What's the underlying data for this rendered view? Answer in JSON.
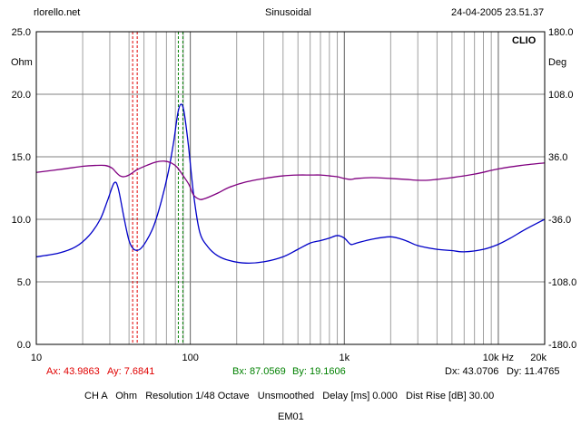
{
  "header": {
    "site": "rlorello.net",
    "mode": "Sinusoidal",
    "datetime": "24-04-2005 23.51.37"
  },
  "brand": "CLIO",
  "chart_data": {
    "type": "line",
    "xscale": "log",
    "xlim": [
      10,
      20000
    ],
    "ylim_left": [
      0,
      25
    ],
    "ylim_right": [
      -180,
      180
    ],
    "left_unit": "Ohm",
    "right_unit": "Deg",
    "left_ticks": [
      "25.0",
      "20.0",
      "15.0",
      "10.0",
      "5.0",
      "0.0"
    ],
    "left_tick_values": [
      25,
      20,
      15,
      10,
      5,
      0
    ],
    "right_ticks": [
      "180.0",
      "108.0",
      "36.0",
      "-36.0",
      "-108.0",
      "-180.0"
    ],
    "right_tick_values": [
      180,
      108,
      36,
      -36,
      -108,
      -180
    ],
    "x_ticks": [
      {
        "label": "10",
        "value": 10
      },
      {
        "label": "100",
        "value": 100
      },
      {
        "label": "1k",
        "value": 1000
      },
      {
        "label": "10k Hz",
        "value": 10000
      },
      {
        "label": "20k",
        "value": 20000
      }
    ],
    "grid": true,
    "series": [
      {
        "axis": "left",
        "color": "#0000c8",
        "points": [
          [
            10,
            7.0
          ],
          [
            14,
            7.3
          ],
          [
            18,
            7.8
          ],
          [
            22,
            8.7
          ],
          [
            26,
            10.0
          ],
          [
            29,
            11.5
          ],
          [
            32,
            12.9
          ],
          [
            34,
            12.5
          ],
          [
            37,
            10.2
          ],
          [
            40,
            8.3
          ],
          [
            43,
            7.6
          ],
          [
            47,
            7.6
          ],
          [
            52,
            8.3
          ],
          [
            58,
            9.5
          ],
          [
            65,
            11.5
          ],
          [
            72,
            13.8
          ],
          [
            78,
            16.2
          ],
          [
            83,
            18.5
          ],
          [
            87,
            19.2
          ],
          [
            91,
            18.6
          ],
          [
            97,
            16.0
          ],
          [
            105,
            12.0
          ],
          [
            115,
            9.0
          ],
          [
            130,
            7.8
          ],
          [
            150,
            7.1
          ],
          [
            180,
            6.7
          ],
          [
            230,
            6.5
          ],
          [
            300,
            6.6
          ],
          [
            400,
            7.0
          ],
          [
            500,
            7.6
          ],
          [
            600,
            8.1
          ],
          [
            700,
            8.3
          ],
          [
            800,
            8.5
          ],
          [
            900,
            8.7
          ],
          [
            1000,
            8.5
          ],
          [
            1100,
            8.0
          ],
          [
            1200,
            8.1
          ],
          [
            1500,
            8.4
          ],
          [
            2000,
            8.6
          ],
          [
            2500,
            8.3
          ],
          [
            3000,
            7.9
          ],
          [
            4000,
            7.6
          ],
          [
            5000,
            7.5
          ],
          [
            6000,
            7.4
          ],
          [
            8000,
            7.6
          ],
          [
            10000,
            8.0
          ],
          [
            12000,
            8.5
          ],
          [
            15000,
            9.2
          ],
          [
            20000,
            10.0
          ]
        ]
      },
      {
        "axis": "right",
        "color": "#800080",
        "points": [
          [
            10,
            18
          ],
          [
            15,
            22
          ],
          [
            20,
            25
          ],
          [
            24,
            26
          ],
          [
            28,
            26
          ],
          [
            31,
            23
          ],
          [
            33,
            18
          ],
          [
            35,
            14
          ],
          [
            37,
            13
          ],
          [
            40,
            15
          ],
          [
            45,
            21
          ],
          [
            52,
            26
          ],
          [
            60,
            30
          ],
          [
            68,
            31
          ],
          [
            75,
            29
          ],
          [
            82,
            24
          ],
          [
            90,
            14
          ],
          [
            98,
            4
          ],
          [
            105,
            -8
          ],
          [
            115,
            -13
          ],
          [
            125,
            -12
          ],
          [
            150,
            -6
          ],
          [
            180,
            1
          ],
          [
            230,
            7
          ],
          [
            300,
            11
          ],
          [
            400,
            14
          ],
          [
            500,
            15
          ],
          [
            600,
            15
          ],
          [
            700,
            15
          ],
          [
            800,
            14
          ],
          [
            900,
            13
          ],
          [
            1000,
            11
          ],
          [
            1100,
            10
          ],
          [
            1200,
            11
          ],
          [
            1500,
            12
          ],
          [
            2000,
            11
          ],
          [
            2500,
            10
          ],
          [
            3000,
            9
          ],
          [
            3500,
            9
          ],
          [
            4000,
            10
          ],
          [
            5000,
            12
          ],
          [
            7000,
            16
          ],
          [
            10000,
            22
          ],
          [
            14000,
            26
          ],
          [
            20000,
            29
          ]
        ]
      }
    ],
    "markers": [
      {
        "x": 43.9863,
        "color": "#e00000"
      },
      {
        "x": 87.0569,
        "color": "#008000"
      }
    ]
  },
  "cursor_readout": {
    "a": {
      "ax_text": "Ax: 43.9863",
      "ay_text": "Ay: 7.6841",
      "color": "#e00000"
    },
    "b": {
      "bx_text": "Bx: 87.0569",
      "by_text": "By: 19.1606",
      "color": "#008000"
    },
    "delta": {
      "dx_text": "Dx: 43.0706",
      "dy_text": "Dy: 11.4765"
    }
  },
  "footer": {
    "settings": "CH A   Ohm   Resolution 1/48 Octave   Unsmoothed   Delay [ms] 0.000   Dist Rise [dB] 30.00",
    "name": "EM01"
  }
}
